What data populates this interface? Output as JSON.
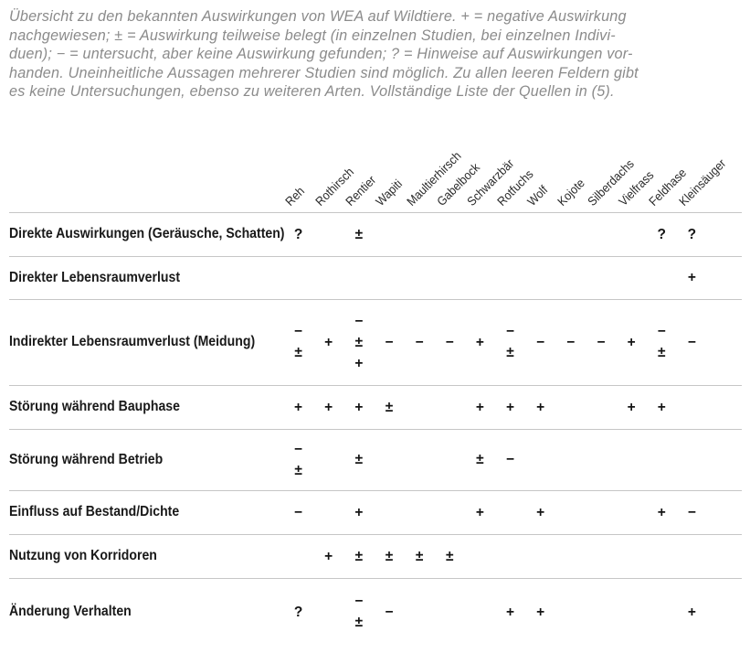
{
  "caption_lines": {
    "0": "Übersicht zu den bekannten Auswirkungen von WEA auf Wildtiere. + = negative Auswirkung",
    "1": "nachgewiesen; ± = Auswirkung teilweise belegt (in einzelnen Studien, bei einzelnen Indivi-",
    "2": "duen); − = untersucht, aber keine Auswirkung gefunden; ? = Hinweise auf Auswirkungen vor-",
    "3": "handen. Uneinheitliche Aussagen mehrerer Studien sind möglich. Zu allen leeren Feldern gibt",
    "4": "es keine Untersuchungen, ebenso zu weiteren Arten. Vollständige Liste der Quellen in (5)."
  },
  "legend": {
    "+": "negative Auswirkung nachgewiesen",
    "±": "Auswirkung teilweise belegt (in einzelnen Studien, bei einzelnen Individuen)",
    "−": "untersucht, aber keine Auswirkung gefunden",
    "?": "Hinweise auf Auswirkungen vorhanden"
  },
  "chart_data": {
    "type": "table",
    "title": "Übersicht zu den bekannten Auswirkungen von WEA auf Wildtiere",
    "columns": [
      "Reh",
      "Rothirsch",
      "Rentier",
      "Wapiti",
      "Maultierhirsch",
      "Gabelbock",
      "Schwarzbär",
      "Rotfuchs",
      "Wolf",
      "Kojote",
      "Silberdachs",
      "Vielfrass",
      "Feldhase",
      "Kleinsäuger"
    ],
    "rows": [
      {
        "label": "Direkte Auswirkungen (Geräusche, Schatten)",
        "cells": [
          [
            "?"
          ],
          [],
          [
            "±"
          ],
          [],
          [],
          [],
          [],
          [],
          [],
          [],
          [],
          [],
          [
            "?"
          ],
          [
            "?"
          ]
        ]
      },
      {
        "label": "Direkter Lebensraumverlust",
        "cells": [
          [],
          [],
          [],
          [],
          [],
          [],
          [],
          [],
          [],
          [],
          [],
          [],
          [],
          [
            "+"
          ]
        ]
      },
      {
        "label": "Indirekter Lebensraumverlust (Meidung)",
        "cells": [
          [
            "−",
            "±"
          ],
          [
            "+"
          ],
          [
            "−",
            "±",
            "+"
          ],
          [
            "−"
          ],
          [
            "−"
          ],
          [
            "−"
          ],
          [
            "+"
          ],
          [
            "−",
            "±"
          ],
          [
            "−"
          ],
          [
            "−"
          ],
          [
            "−"
          ],
          [
            "+"
          ],
          [
            "−",
            "±"
          ],
          [
            "−"
          ]
        ]
      },
      {
        "label": "Störung während Bauphase",
        "cells": [
          [
            "+"
          ],
          [
            "+"
          ],
          [
            "+"
          ],
          [
            "±"
          ],
          [],
          [],
          [
            "+"
          ],
          [
            "+"
          ],
          [
            "+"
          ],
          [],
          [],
          [
            "+"
          ],
          [
            "+"
          ],
          []
        ]
      },
      {
        "label": "Störung während Betrieb",
        "cells": [
          [
            "−",
            "±"
          ],
          [],
          [
            "±"
          ],
          [],
          [],
          [],
          [
            "±"
          ],
          [
            "−"
          ],
          [],
          [],
          [],
          [],
          [],
          []
        ]
      },
      {
        "label": "Einfluss auf Bestand/Dichte",
        "cells": [
          [
            "−"
          ],
          [],
          [
            "+"
          ],
          [],
          [],
          [],
          [
            "+"
          ],
          [],
          [
            "+"
          ],
          [],
          [],
          [],
          [
            "+"
          ],
          [
            "−"
          ]
        ]
      },
      {
        "label": "Nutzung von Korridoren",
        "cells": [
          [],
          [
            "+"
          ],
          [
            "±"
          ],
          [
            "±"
          ],
          [
            "±"
          ],
          [
            "±"
          ],
          [],
          [],
          [],
          [],
          [],
          [],
          [],
          []
        ]
      },
      {
        "label": "Änderung Verhalten",
        "cells": [
          [
            "?"
          ],
          [],
          [
            "−",
            "±"
          ],
          [
            "−"
          ],
          [],
          [],
          [],
          [
            "+"
          ],
          [
            "+"
          ],
          [],
          [],
          [],
          [],
          [
            "+"
          ]
        ]
      }
    ]
  }
}
